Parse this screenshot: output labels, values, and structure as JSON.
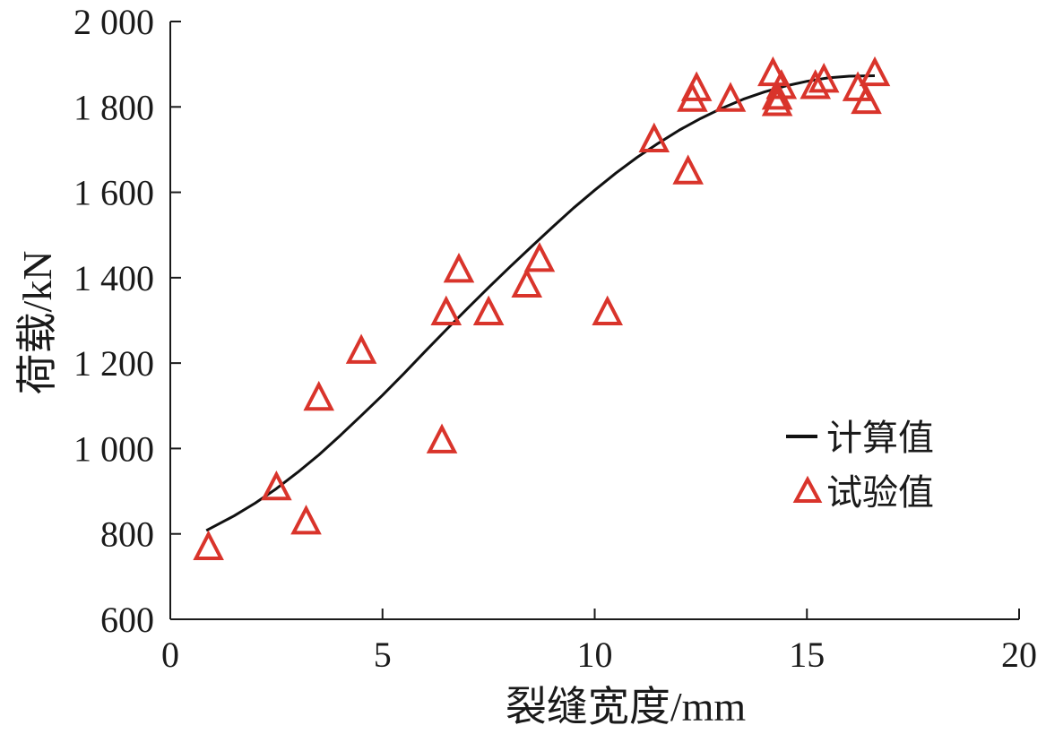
{
  "chart_data": {
    "type": "scatter",
    "xlabel": "裂缝宽度/mm",
    "ylabel": "荷载/kN",
    "xlim": [
      0,
      20
    ],
    "ylim": [
      600,
      2000
    ],
    "x_ticks": [
      0,
      5,
      10,
      15,
      20
    ],
    "x_tick_labels": [
      "0",
      "5",
      "10",
      "15",
      "20"
    ],
    "y_ticks": [
      600,
      800,
      1000,
      1200,
      1400,
      1600,
      1800,
      2000
    ],
    "y_tick_labels": [
      "600",
      "800",
      "1 000",
      "1 200",
      "1 400",
      "1 600",
      "1 800",
      "2 000"
    ],
    "grid": false,
    "legend_position": "right",
    "colors": {
      "calculated": "#111111",
      "experimental": "#d9342b"
    },
    "series": [
      {
        "name": "计算值",
        "kind": "line",
        "points": [
          [
            0.85,
            808
          ],
          [
            1.5,
            842
          ],
          [
            2.0,
            872
          ],
          [
            2.5,
            906
          ],
          [
            3.0,
            944
          ],
          [
            3.5,
            985
          ],
          [
            4.0,
            1030
          ],
          [
            4.5,
            1077
          ],
          [
            5.0,
            1125
          ],
          [
            5.5,
            1175
          ],
          [
            6.0,
            1227
          ],
          [
            6.5,
            1278
          ],
          [
            7.0,
            1328
          ],
          [
            7.5,
            1377
          ],
          [
            8.0,
            1425
          ],
          [
            8.5,
            1472
          ],
          [
            9.0,
            1518
          ],
          [
            9.5,
            1563
          ],
          [
            10.0,
            1605
          ],
          [
            10.5,
            1645
          ],
          [
            11.0,
            1682
          ],
          [
            11.5,
            1715
          ],
          [
            12.0,
            1746
          ],
          [
            12.5,
            1773
          ],
          [
            13.0,
            1797
          ],
          [
            13.5,
            1818
          ],
          [
            14.0,
            1835
          ],
          [
            14.5,
            1849
          ],
          [
            15.0,
            1860
          ],
          [
            15.5,
            1868
          ],
          [
            16.0,
            1872
          ],
          [
            16.6,
            1873
          ]
        ]
      },
      {
        "name": "试验值",
        "kind": "scatter",
        "marker": "triangle-open",
        "points": [
          [
            0.9,
            770
          ],
          [
            2.5,
            910
          ],
          [
            3.2,
            830
          ],
          [
            3.5,
            1120
          ],
          [
            4.5,
            1230
          ],
          [
            6.4,
            1020
          ],
          [
            6.5,
            1320
          ],
          [
            6.8,
            1420
          ],
          [
            7.5,
            1320
          ],
          [
            8.4,
            1385
          ],
          [
            8.7,
            1445
          ],
          [
            10.3,
            1320
          ],
          [
            11.4,
            1725
          ],
          [
            12.2,
            1650
          ],
          [
            12.3,
            1820
          ],
          [
            12.4,
            1845
          ],
          [
            13.2,
            1820
          ],
          [
            14.2,
            1880
          ],
          [
            14.3,
            1810
          ],
          [
            14.3,
            1825
          ],
          [
            14.4,
            1850
          ],
          [
            15.2,
            1850
          ],
          [
            15.4,
            1865
          ],
          [
            16.2,
            1845
          ],
          [
            16.4,
            1815
          ],
          [
            16.6,
            1880
          ]
        ]
      }
    ]
  }
}
